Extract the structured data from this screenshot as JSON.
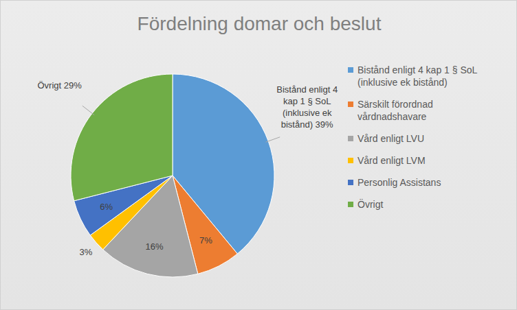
{
  "chart_data": {
    "type": "pie",
    "title": "Fördelning domar och beslut",
    "categories": [
      "Bistånd enligt 4 kap 1 § SoL (inklusive ek bistånd)",
      "Särskilt förordnad vårdnadshavare",
      "Vård enligt LVU",
      "Vård enligt LVM",
      "Personlig Assistans",
      "Övrigt"
    ],
    "values": [
      39,
      7,
      16,
      3,
      6,
      29
    ],
    "colors": [
      "#5b9bd5",
      "#ed7d31",
      "#a5a5a5",
      "#ffc000",
      "#4472c4",
      "#70ad47"
    ],
    "data_labels": true,
    "value_labels": [
      "Bistånd enligt 4 kap 1 § SoL (inklusive ek bistånd) 39%",
      "7%",
      "16%",
      "3%",
      "6%",
      "Övrigt 29%"
    ],
    "legend": "right"
  }
}
